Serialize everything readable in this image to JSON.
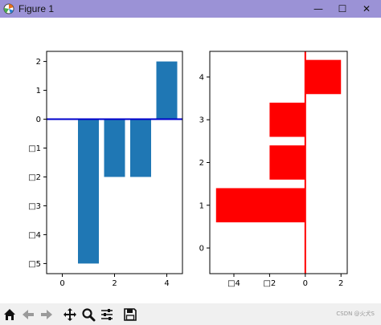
{
  "window": {
    "title": "Figure 1",
    "minimize_glyph": "—",
    "maximize_glyph": "☐",
    "close_glyph": "✕"
  },
  "toolbar": {
    "tools": [
      {
        "name": "home-icon"
      },
      {
        "name": "back-arrow-icon"
      },
      {
        "name": "forward-arrow-icon"
      },
      {
        "name": "pan-icon"
      },
      {
        "name": "zoom-icon"
      },
      {
        "name": "configure-subplots-icon"
      },
      {
        "name": "save-icon"
      }
    ]
  },
  "watermark": "CSDN @火犬S",
  "chart_data": [
    {
      "type": "bar",
      "orientation": "vertical",
      "x": [
        1,
        2,
        3,
        4
      ],
      "values": [
        -5,
        -2,
        -2,
        2
      ],
      "bar_color": "#1f77b4",
      "xlim": [
        -0.6,
        4.6
      ],
      "ylim": [
        -5.35,
        2.35
      ],
      "xticks": [
        0,
        2,
        4
      ],
      "xtick_labels": [
        "0",
        "2",
        "4"
      ],
      "yticks": [
        2,
        1,
        0,
        -1,
        -2,
        -3,
        -4,
        -5
      ],
      "ytick_labels": [
        "2",
        "1",
        "0",
        "□1",
        "□2",
        "□3",
        "□4",
        "□5"
      ],
      "hline": {
        "y": 0,
        "color": "#0000cc"
      }
    },
    {
      "type": "bar",
      "orientation": "horizontal",
      "y": [
        1,
        2,
        3,
        4
      ],
      "values": [
        -5,
        -2,
        -2,
        2
      ],
      "bar_color": "#ff0000",
      "xlim": [
        -5.35,
        2.35
      ],
      "ylim": [
        -0.6,
        4.6
      ],
      "xticks": [
        -4,
        -2,
        0,
        2
      ],
      "xtick_labels": [
        "□4",
        "□2",
        "0",
        "2"
      ],
      "yticks": [
        0,
        1,
        2,
        3,
        4
      ],
      "ytick_labels": [
        "0",
        "1",
        "2",
        "3",
        "4"
      ],
      "vline": {
        "x": 0,
        "color": "#ff0000"
      }
    }
  ]
}
